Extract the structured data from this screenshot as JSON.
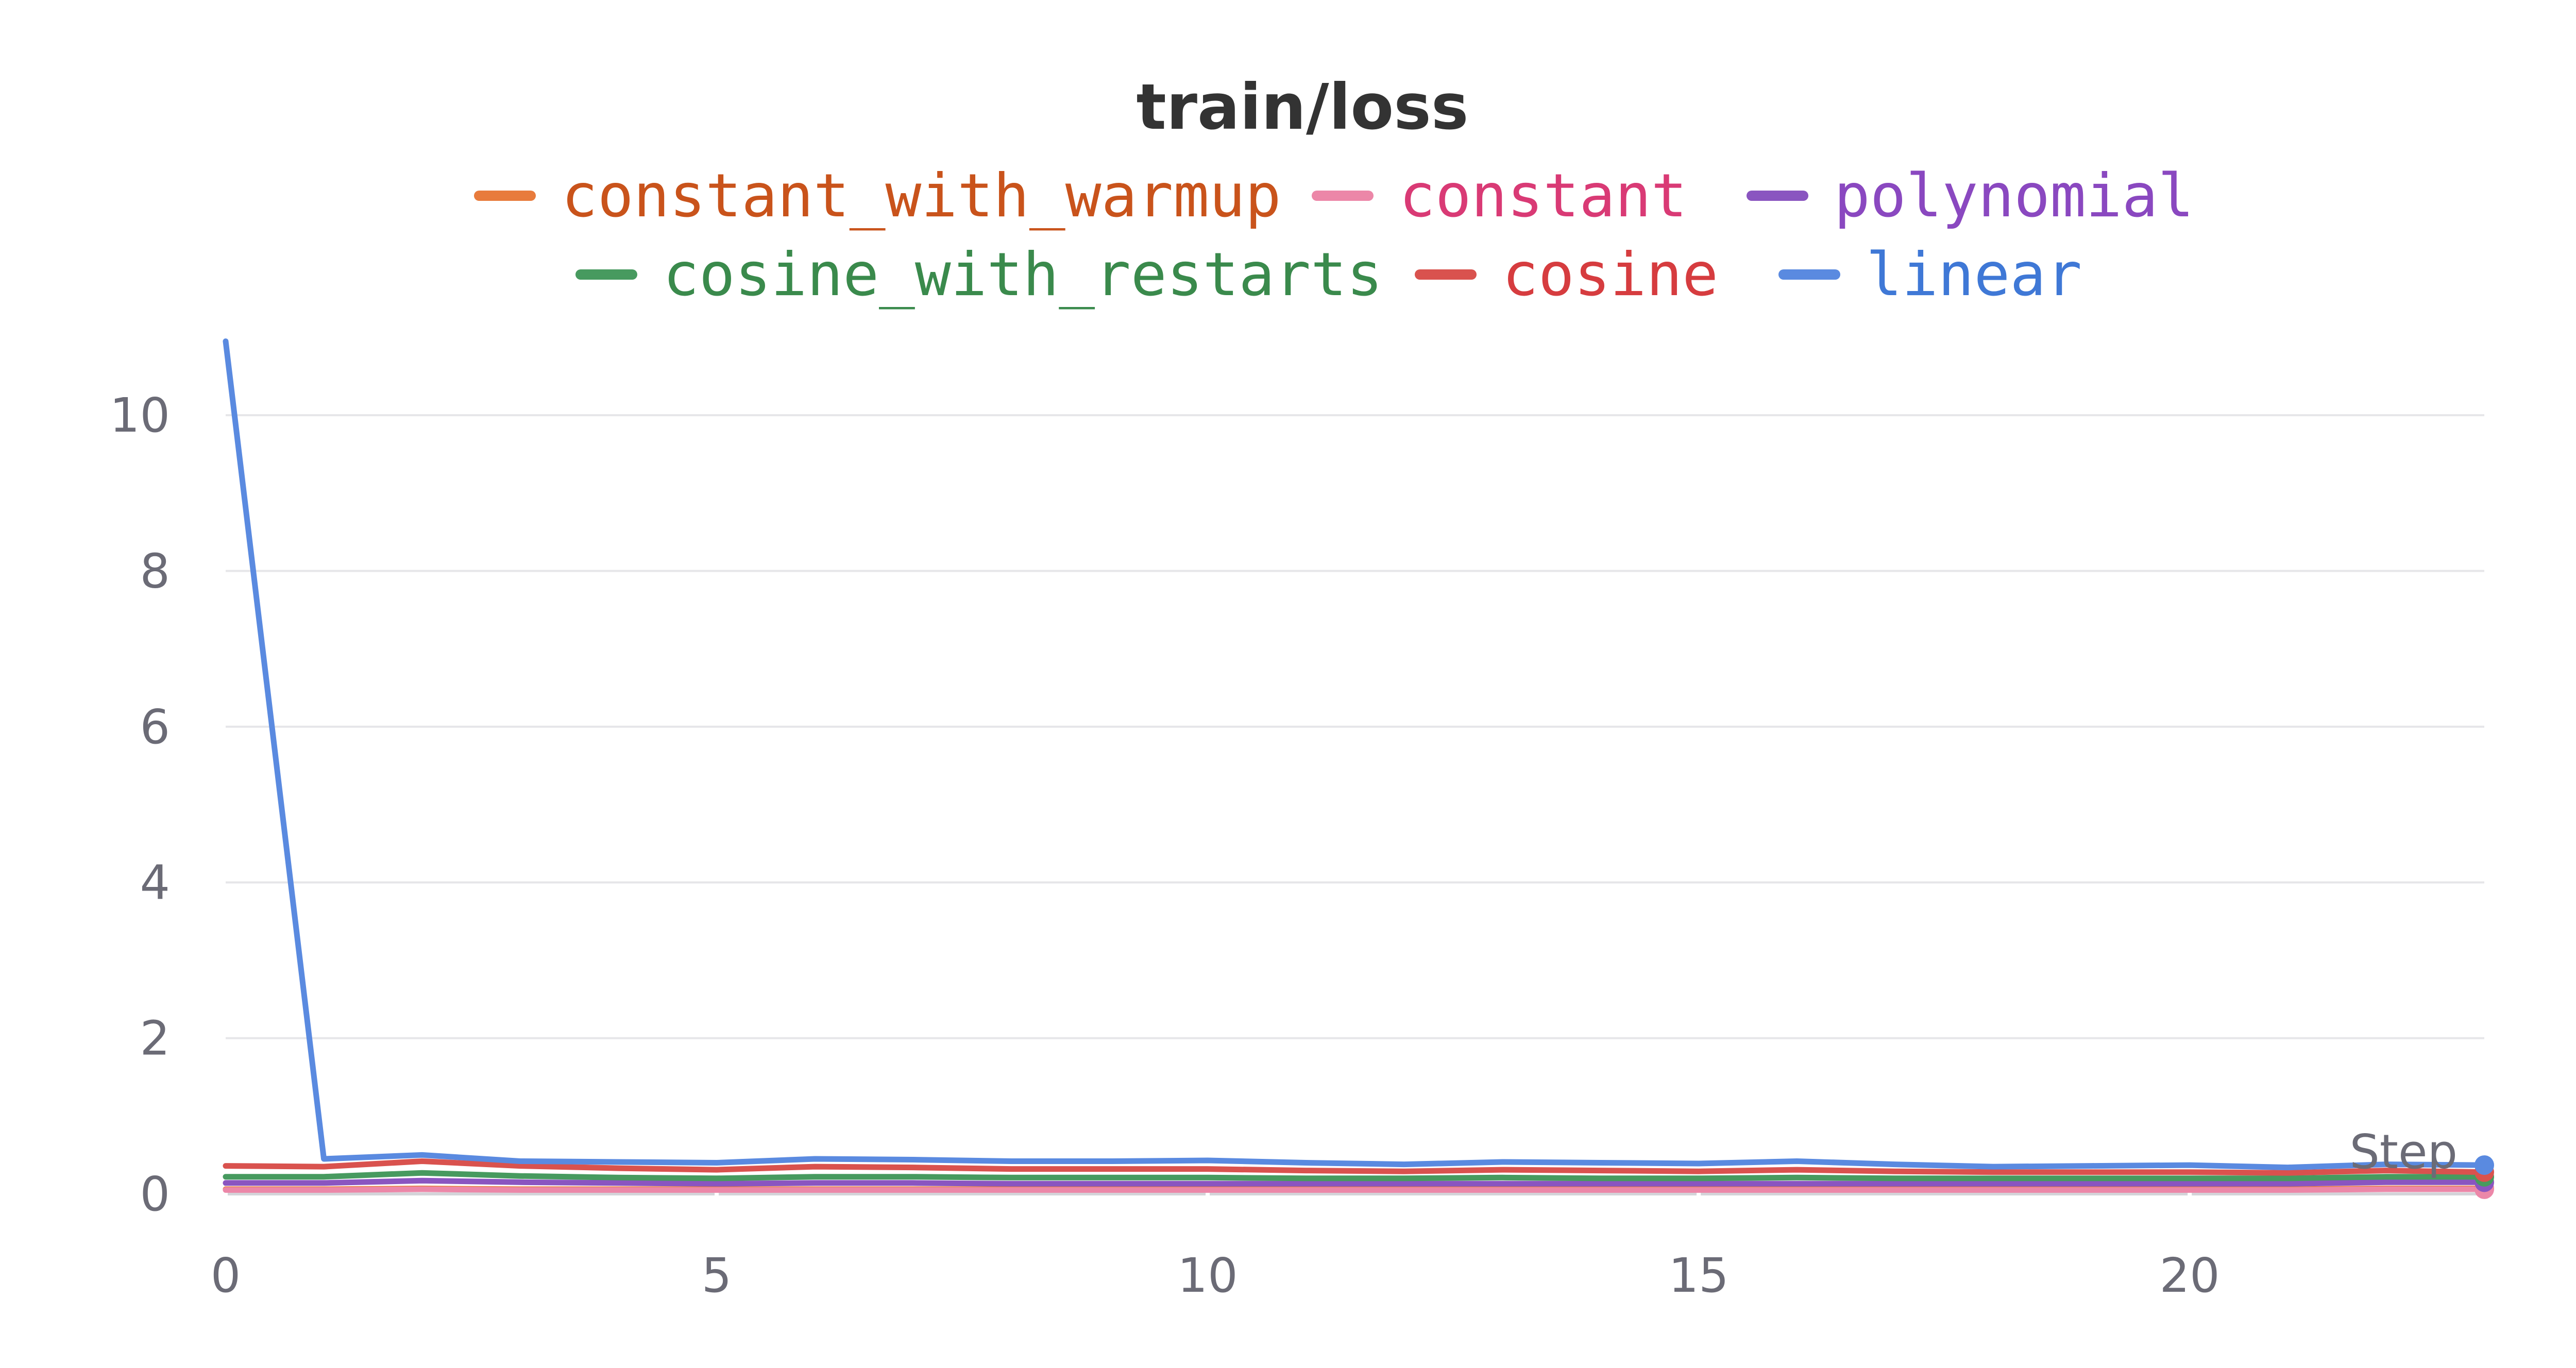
{
  "chart_data": {
    "type": "line",
    "title": "train/loss",
    "xlabel": "Step",
    "ylabel": "",
    "xlim": [
      0,
      23
    ],
    "ylim": [
      0,
      11
    ],
    "x_ticks": [
      "0",
      "5",
      "10",
      "15",
      "20"
    ],
    "x_tick_values": [
      0,
      5,
      10,
      15,
      20
    ],
    "y_ticks": [
      "0",
      "2",
      "4",
      "6",
      "8",
      "10"
    ],
    "y_tick_values": [
      0,
      2,
      4,
      6,
      8,
      10
    ],
    "grid": true,
    "legend_position": "top",
    "x": [
      0,
      1,
      2,
      3,
      4,
      5,
      6,
      7,
      8,
      9,
      10,
      11,
      12,
      13,
      14,
      15,
      16,
      17,
      18,
      19,
      20,
      21,
      22,
      23
    ],
    "series": [
      {
        "name": "constant_with_warmup",
        "color": "#e87b3c",
        "label_color": "#c9531b",
        "values": [
          0.06,
          0.06,
          0.07,
          0.06,
          0.06,
          0.06,
          0.06,
          0.06,
          0.06,
          0.06,
          0.06,
          0.06,
          0.06,
          0.06,
          0.06,
          0.06,
          0.06,
          0.06,
          0.06,
          0.06,
          0.06,
          0.06,
          0.07,
          0.07
        ]
      },
      {
        "name": "constant",
        "color": "#ec87a8",
        "label_color": "#d93a75",
        "values": [
          0.05,
          0.05,
          0.06,
          0.05,
          0.05,
          0.05,
          0.05,
          0.05,
          0.05,
          0.05,
          0.05,
          0.05,
          0.05,
          0.05,
          0.05,
          0.05,
          0.05,
          0.05,
          0.05,
          0.05,
          0.05,
          0.05,
          0.06,
          0.06
        ]
      },
      {
        "name": "polynomial",
        "color": "#8a55c0",
        "label_color": "#8a48c0",
        "values": [
          0.14,
          0.14,
          0.17,
          0.15,
          0.14,
          0.13,
          0.14,
          0.14,
          0.13,
          0.13,
          0.13,
          0.13,
          0.13,
          0.13,
          0.13,
          0.13,
          0.13,
          0.13,
          0.13,
          0.13,
          0.13,
          0.13,
          0.15,
          0.15
        ]
      },
      {
        "name": "cosine_with_restarts",
        "color": "#479a5f",
        "label_color": "#3a8a4c",
        "values": [
          0.22,
          0.22,
          0.27,
          0.23,
          0.21,
          0.2,
          0.22,
          0.22,
          0.21,
          0.21,
          0.21,
          0.2,
          0.2,
          0.21,
          0.2,
          0.2,
          0.21,
          0.2,
          0.2,
          0.2,
          0.2,
          0.2,
          0.22,
          0.22
        ]
      },
      {
        "name": "cosine",
        "color": "#d9524e",
        "label_color": "#d63c3f",
        "values": [
          0.36,
          0.35,
          0.42,
          0.36,
          0.33,
          0.31,
          0.35,
          0.34,
          0.32,
          0.32,
          0.32,
          0.3,
          0.29,
          0.31,
          0.3,
          0.29,
          0.31,
          0.29,
          0.28,
          0.28,
          0.28,
          0.27,
          0.3,
          0.28
        ]
      },
      {
        "name": "linear",
        "color": "#5a8ae0",
        "label_color": "#3f78d6",
        "values": [
          10.95,
          0.45,
          0.5,
          0.42,
          0.41,
          0.4,
          0.45,
          0.44,
          0.42,
          0.42,
          0.43,
          0.4,
          0.38,
          0.41,
          0.4,
          0.39,
          0.42,
          0.38,
          0.35,
          0.36,
          0.37,
          0.34,
          0.38,
          0.37
        ]
      }
    ]
  }
}
